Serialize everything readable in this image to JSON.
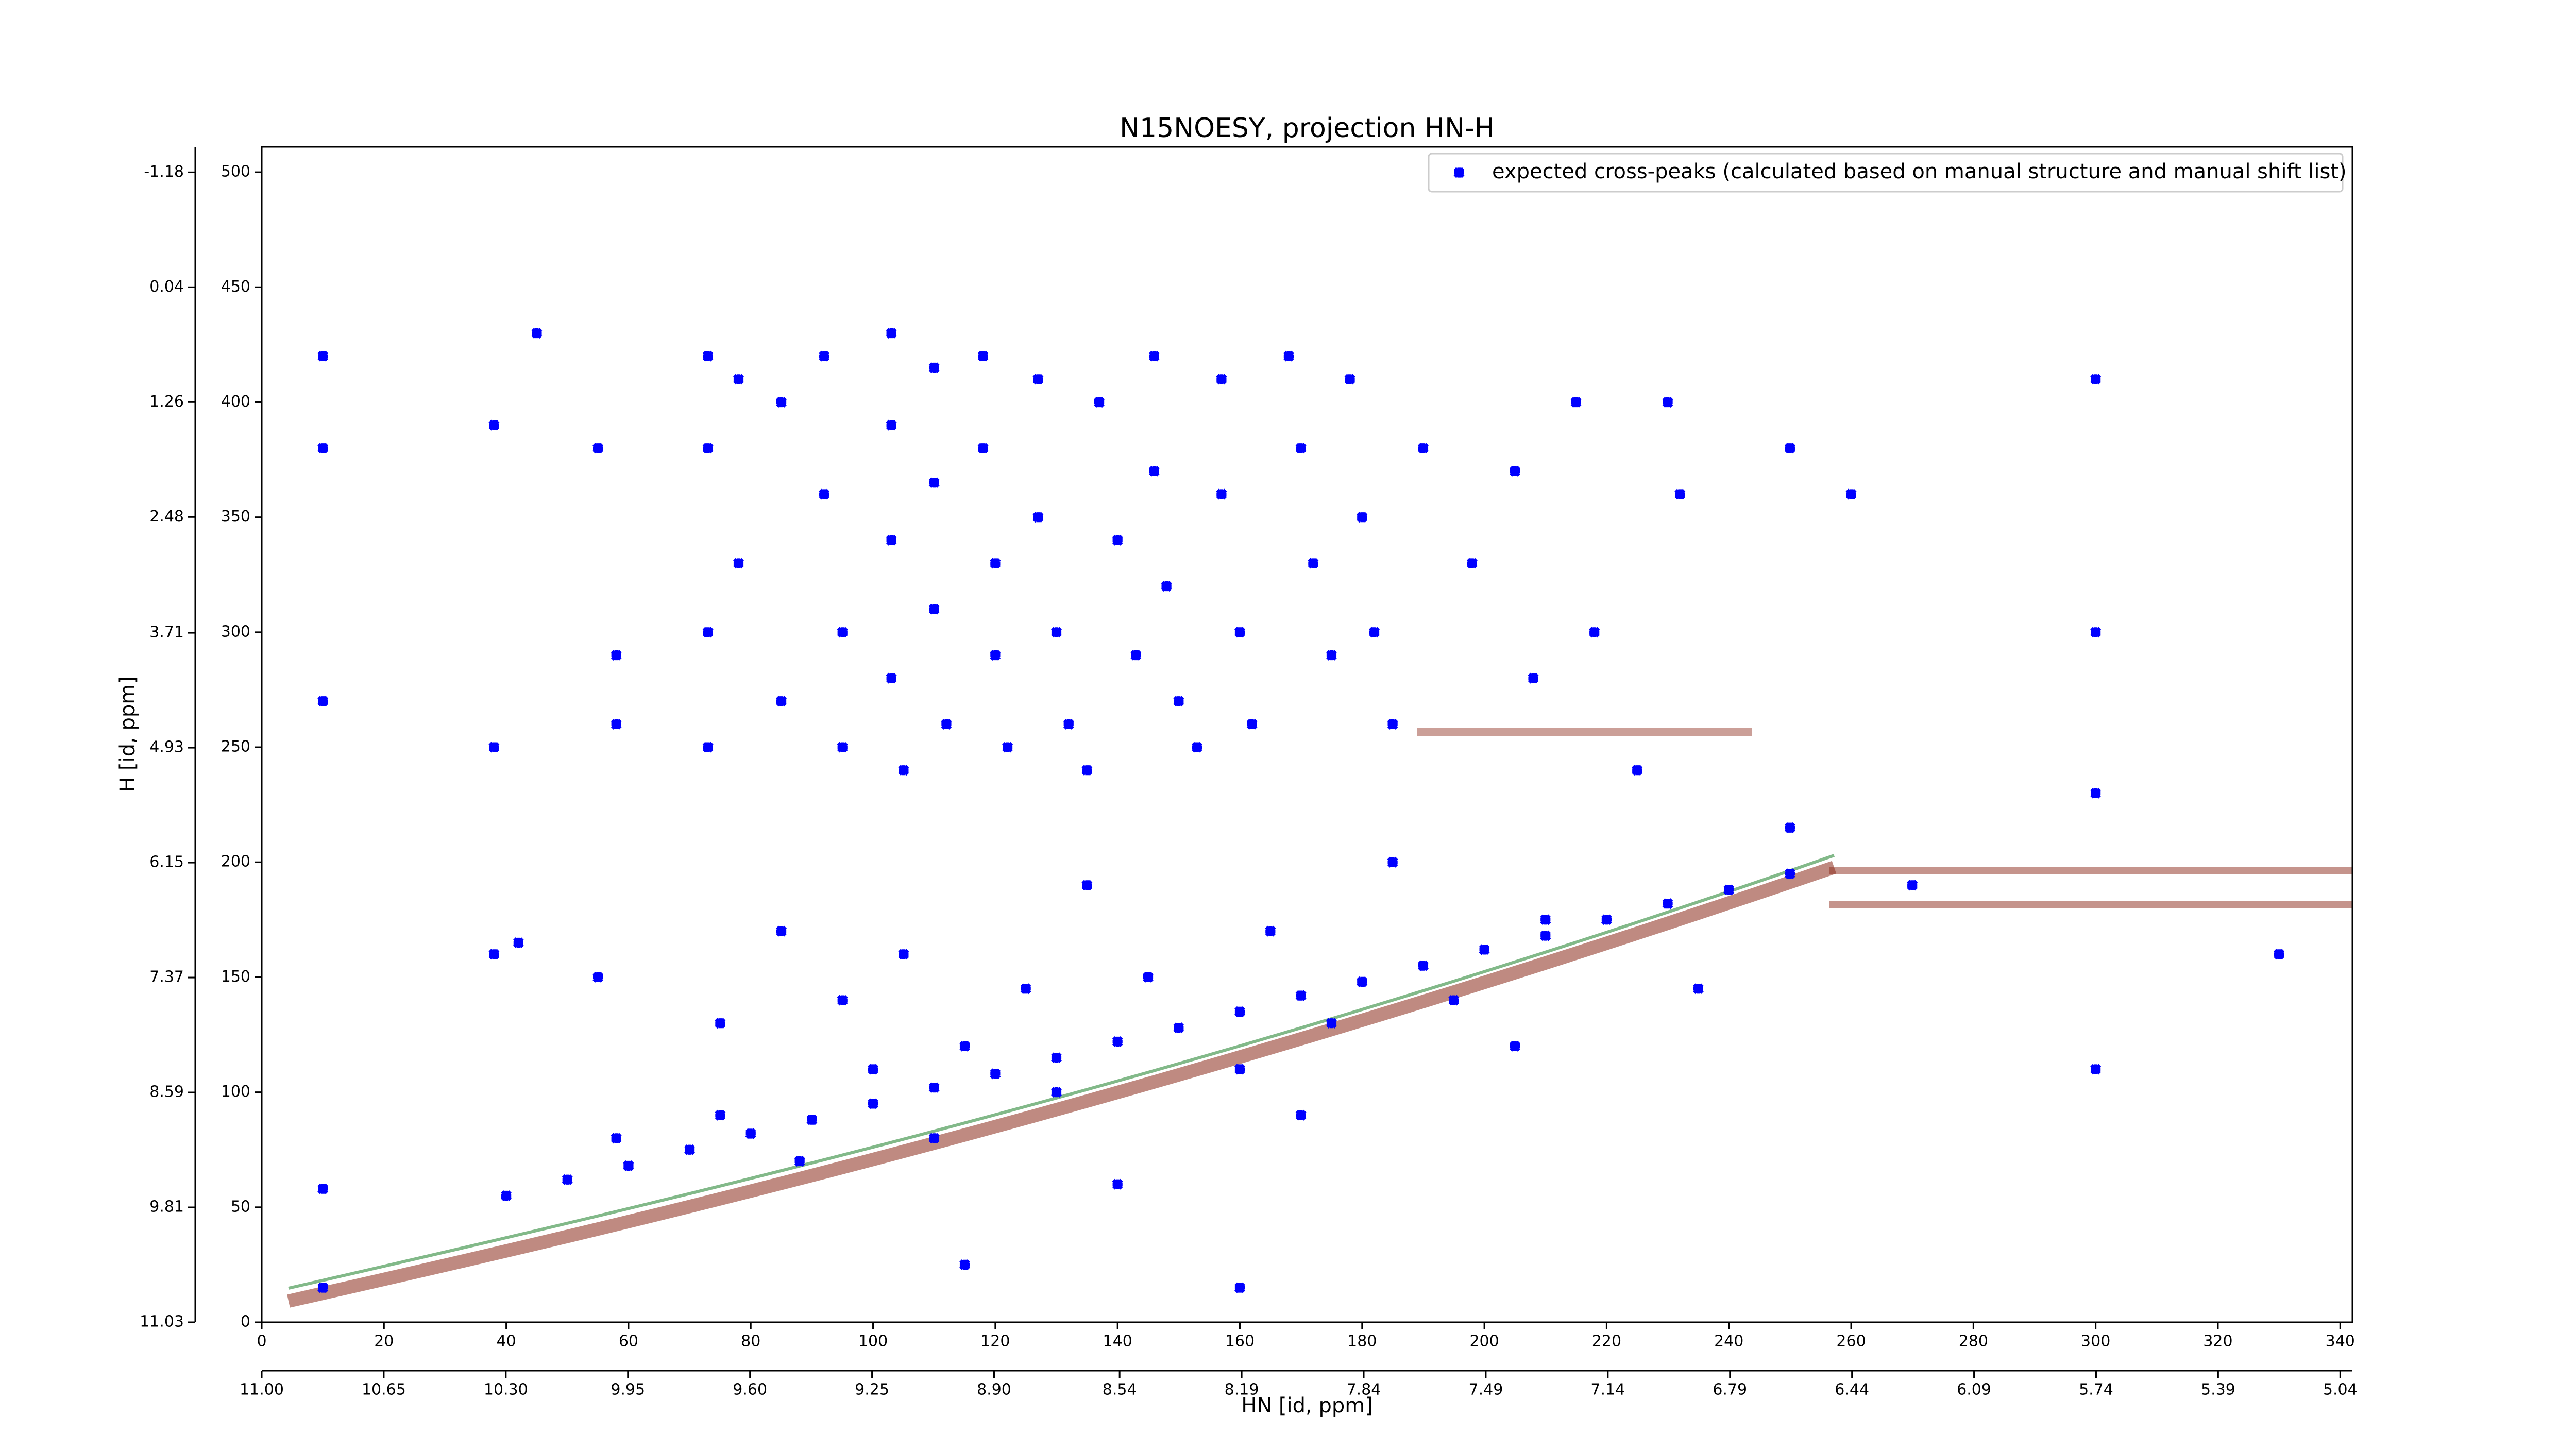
{
  "chart_data": {
    "type": "scatter",
    "title": "N15NOESY, projection HN-H",
    "xlabel": "HN [id, ppm]",
    "ylabel": "H [id, ppm]",
    "xlim": [
      0,
      342
    ],
    "xticks": [
      0,
      20,
      40,
      60,
      80,
      100,
      120,
      140,
      160,
      180,
      200,
      220,
      240,
      260,
      280,
      300,
      320,
      340
    ],
    "x2lim": [
      11.0,
      5.005
    ],
    "x2ticks": [
      {
        "value": 11.0,
        "label": "11.00"
      },
      {
        "value": 10.65,
        "label": "10.65"
      },
      {
        "value": 10.3,
        "label": "10.30"
      },
      {
        "value": 9.95,
        "label": "9.95"
      },
      {
        "value": 9.6,
        "label": "9.60"
      },
      {
        "value": 9.25,
        "label": "9.25"
      },
      {
        "value": 8.9,
        "label": "8.90"
      },
      8.54,
      8.19,
      7.84,
      7.49,
      7.14,
      6.79,
      6.44,
      6.09,
      5.74,
      5.39,
      5.04
    ],
    "ylim": [
      0,
      511
    ],
    "yticks": [
      0,
      50,
      100,
      150,
      200,
      250,
      300,
      350,
      400,
      450,
      500
    ],
    "y2lim": [
      11.03,
      -1.45
    ],
    "y2ticks": [
      -1.18,
      0.04,
      1.26,
      2.48,
      3.71,
      4.93,
      6.15,
      7.37,
      8.59,
      9.81,
      11.03
    ],
    "legend": "upper right",
    "series": [
      {
        "name": "expected cross-peaks (calculated based on manual structure and manual shift list)",
        "color": "#0000ff",
        "x": [
          40,
          50,
          60,
          70,
          80,
          90,
          100,
          110,
          120,
          130,
          140,
          150,
          160,
          170,
          180,
          190,
          200,
          210,
          220,
          230,
          240,
          250,
          73,
          73,
          73,
          73,
          78,
          78,
          85,
          85,
          92,
          92,
          95,
          95,
          103,
          103,
          103,
          103,
          105,
          110,
          110,
          110,
          112,
          118,
          118,
          120,
          120,
          122,
          127,
          127,
          130,
          132,
          135,
          137,
          140,
          143,
          146,
          146,
          148,
          150,
          153,
          157,
          157,
          160,
          162,
          168,
          170,
          172,
          175,
          178,
          180,
          182,
          185,
          190,
          198,
          205,
          208,
          215,
          218,
          225,
          230,
          232,
          250,
          260,
          300,
          300,
          300,
          10,
          10,
          10,
          38,
          38,
          45,
          55,
          58,
          58,
          38,
          42,
          55,
          58,
          75,
          75,
          85,
          88,
          95,
          100,
          105,
          110,
          115,
          125,
          130,
          135,
          140,
          145,
          160,
          165,
          170,
          175,
          185,
          195,
          205,
          210,
          235,
          250,
          270,
          300,
          330,
          10,
          10,
          160,
          115
        ],
        "values": [
          55,
          62,
          68,
          75,
          82,
          88,
          95,
          102,
          108,
          115,
          122,
          128,
          135,
          142,
          148,
          155,
          162,
          168,
          175,
          182,
          188,
          195,
          420,
          380,
          300,
          250,
          410,
          330,
          400,
          270,
          420,
          360,
          300,
          250,
          430,
          390,
          340,
          280,
          240,
          415,
          365,
          310,
          260,
          420,
          380,
          330,
          290,
          250,
          410,
          350,
          300,
          260,
          240,
          400,
          340,
          290,
          420,
          370,
          320,
          270,
          250,
          410,
          360,
          300,
          260,
          420,
          380,
          330,
          290,
          410,
          350,
          300,
          260,
          380,
          330,
          370,
          280,
          400,
          300,
          240,
          400,
          360,
          380,
          360,
          410,
          300,
          230,
          420,
          380,
          270,
          390,
          250,
          430,
          380,
          260,
          290,
          160,
          165,
          150,
          80,
          130,
          90,
          170,
          70,
          140,
          110,
          160,
          80,
          120,
          145,
          100,
          190,
          60,
          150,
          110,
          170,
          90,
          130,
          200,
          140,
          120,
          175,
          145,
          215,
          190,
          110,
          160,
          58,
          15,
          15,
          25
        ]
      }
    ]
  }
}
